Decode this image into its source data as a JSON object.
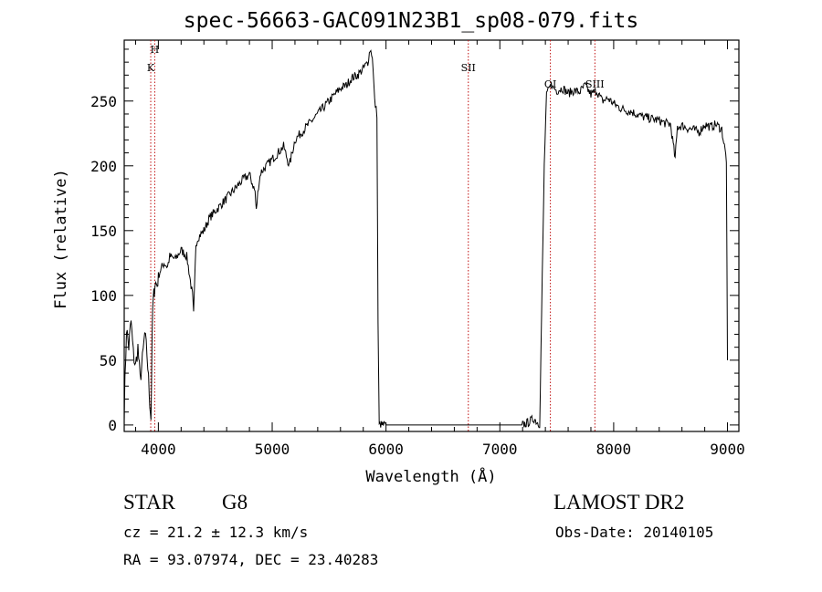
{
  "title": "spec-56663-GAC091N23B1_sp08-079.fits",
  "xlabel": "Wavelength (Å)",
  "ylabel": "Flux (relative)",
  "info": {
    "class": "STAR",
    "subclass": "G8",
    "cz": "cz = 21.2 ± 12.3 km/s",
    "radec": "RA =  93.07974, DEC =  23.40283",
    "survey": "LAMOST DR2",
    "obsdate": "Obs-Date: 20140105"
  },
  "chart_data": {
    "type": "line",
    "title": "spec-56663-GAC091N23B1_sp08-079.fits",
    "xlabel": "Wavelength (Å)",
    "ylabel": "Flux (relative)",
    "xlim": [
      3700,
      9100
    ],
    "ylim": [
      -5,
      297
    ],
    "xticks": [
      4000,
      5000,
      6000,
      7000,
      8000,
      9000
    ],
    "yticks": [
      0,
      50,
      100,
      150,
      200,
      250
    ],
    "grid": false,
    "series": [
      {
        "x": [
          3700,
          3720,
          3740,
          3760,
          3780,
          3800,
          3820,
          3840,
          3860,
          3880,
          3900,
          3920,
          3935,
          3950,
          3960,
          3970,
          3990,
          4000,
          4020,
          4050,
          4080,
          4100,
          4150,
          4200,
          4250,
          4300,
          4310,
          4330,
          4350,
          4400,
          4450,
          4500,
          4550,
          4600,
          4650,
          4700,
          4750,
          4800,
          4850,
          4860,
          4880,
          4900,
          4950,
          5000,
          5050,
          5100,
          5150,
          5200,
          5250,
          5300,
          5350,
          5400,
          5450,
          5500,
          5550,
          5600,
          5650,
          5700,
          5750,
          5800,
          5840,
          5860,
          5880,
          5900,
          5920,
          5930,
          5940,
          5960,
          6000,
          6500,
          7000,
          7200,
          7250,
          7300,
          7350,
          7390,
          7410,
          7430,
          7450,
          7500,
          7550,
          7600,
          7650,
          7700,
          7750,
          7800,
          7850,
          7900,
          7950,
          8000,
          8050,
          8100,
          8150,
          8200,
          8250,
          8300,
          8350,
          8400,
          8450,
          8500,
          8540,
          8560,
          8600,
          8650,
          8700,
          8750,
          8800,
          8850,
          8900,
          8950,
          8990,
          9000
        ],
        "y": [
          10,
          75,
          60,
          80,
          55,
          45,
          60,
          35,
          50,
          70,
          55,
          25,
          5,
          90,
          100,
          110,
          108,
          115,
          120,
          125,
          122,
          130,
          128,
          135,
          130,
          100,
          85,
          140,
          145,
          150,
          160,
          165,
          170,
          175,
          180,
          185,
          190,
          193,
          180,
          165,
          185,
          195,
          200,
          205,
          210,
          215,
          200,
          220,
          225,
          230,
          235,
          240,
          245,
          250,
          255,
          260,
          262,
          268,
          270,
          275,
          280,
          290,
          285,
          250,
          240,
          80,
          0,
          0,
          0,
          0,
          0,
          0,
          2,
          5,
          0,
          200,
          255,
          260,
          262,
          258,
          260,
          256,
          258,
          257,
          262,
          255,
          258,
          250,
          252,
          248,
          245,
          243,
          242,
          240,
          238,
          237,
          236,
          235,
          233,
          232,
          205,
          230,
          231,
          229,
          228,
          226,
          232,
          230,
          232,
          228,
          205,
          50
        ]
      }
    ],
    "lines": [
      {
        "label": "H",
        "x": 3968
      },
      {
        "label": "K",
        "x": 3933
      },
      {
        "label": "SII",
        "x": 6723
      },
      {
        "label": "OI",
        "x": 7444
      },
      {
        "label": "SIII",
        "x": 7835
      }
    ],
    "line_color": "#c01010"
  }
}
